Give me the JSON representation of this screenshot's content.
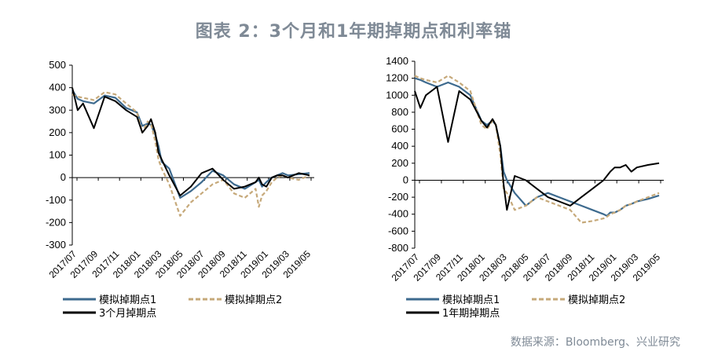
{
  "title": "图表 2：3个月和1年期掉期点和利率锚",
  "source": "数据来源：Bloomberg、兴业研究",
  "colors": {
    "series1": "#3d6a8e",
    "series2": "#c6a97a",
    "series3": "#000000"
  },
  "chart_data": [
    {
      "type": "line",
      "ylim": [
        -300,
        500
      ],
      "yticks": [
        "500",
        "400",
        "300",
        "200",
        "100",
        "0",
        "-100",
        "-200",
        "-300"
      ],
      "xticks": [
        "2017/07",
        "2017/09",
        "2017/11",
        "2018/01",
        "2018/03",
        "2018/05",
        "2018/07",
        "2018/09",
        "2018/11",
        "2019/01",
        "2019/03",
        "2019/05"
      ],
      "grid": false,
      "legend": "bottom-left",
      "series": [
        {
          "name": "模拟掉期点1",
          "style": "solid",
          "x": [
            0,
            0.5,
            1,
            2,
            3,
            4,
            5,
            6,
            6.5,
            7,
            7.3,
            7.7,
            8,
            8.3,
            9,
            10,
            11,
            12,
            13,
            14,
            15,
            16,
            17,
            17.3,
            17.6,
            18,
            18.5,
            19,
            19.5,
            20,
            21,
            22
          ],
          "values": [
            390,
            350,
            340,
            330,
            365,
            355,
            310,
            290,
            230,
            240,
            235,
            190,
            140,
            70,
            40,
            -90,
            -60,
            -20,
            30,
            10,
            -30,
            -50,
            -20,
            -10,
            -40,
            -20,
            0,
            10,
            20,
            10,
            15,
            20
          ]
        },
        {
          "name": "模拟掉期点2",
          "style": "dashed",
          "x": [
            0,
            0.5,
            1,
            2,
            3,
            4,
            5,
            6,
            6.5,
            7,
            7.3,
            7.7,
            8,
            8.3,
            9,
            10,
            11,
            12,
            13,
            14,
            15,
            16,
            17,
            17.3,
            17.6,
            18,
            18.5,
            19,
            19.5,
            20,
            21,
            22
          ],
          "values": [
            370,
            360,
            355,
            345,
            380,
            370,
            330,
            290,
            200,
            250,
            240,
            160,
            80,
            40,
            -30,
            -170,
            -110,
            -70,
            -30,
            -10,
            -70,
            -90,
            -50,
            -130,
            -80,
            -60,
            -20,
            0,
            10,
            0,
            -10,
            10
          ]
        },
        {
          "name": "3个月掉期点",
          "style": "solid",
          "x": [
            0,
            0.5,
            1,
            2,
            3,
            4,
            5,
            6,
            6.5,
            7,
            7.3,
            7.7,
            8,
            8.3,
            9,
            10,
            11,
            12,
            13,
            14,
            15,
            16,
            17,
            17.3,
            17.6,
            18,
            18.5,
            19,
            19.5,
            20,
            21,
            22
          ],
          "values": [
            400,
            300,
            330,
            220,
            360,
            340,
            300,
            270,
            200,
            230,
            260,
            200,
            110,
            80,
            10,
            -80,
            -40,
            20,
            40,
            -10,
            -50,
            -40,
            -20,
            0,
            -30,
            -40,
            0,
            10,
            10,
            0,
            20,
            10
          ]
        }
      ]
    },
    {
      "type": "line",
      "ylim": [
        -800,
        1400
      ],
      "yticks": [
        "1400",
        "1200",
        "1000",
        "800",
        "600",
        "400",
        "200",
        "0",
        "-200",
        "-400",
        "-600",
        "-800"
      ],
      "xticks": [
        "2017/07",
        "2017/09",
        "2017/11",
        "2018/01",
        "2018/03",
        "2018/05",
        "2018/07",
        "2018/09",
        "2018/11",
        "2019/01",
        "2019/03",
        "2019/05"
      ],
      "grid": false,
      "legend": "bottom-left",
      "series": [
        {
          "name": "模拟掉期点1",
          "style": "solid",
          "x": [
            0,
            0.5,
            1,
            2,
            3,
            4,
            5,
            6,
            6.5,
            7,
            7.3,
            7.7,
            8,
            8.3,
            9,
            10,
            11,
            12,
            13,
            14,
            15,
            16,
            17,
            17.3,
            17.6,
            18,
            18.5,
            19,
            19.5,
            20,
            21,
            22
          ],
          "values": [
            1200,
            1180,
            1150,
            1100,
            1150,
            1100,
            1000,
            700,
            650,
            700,
            650,
            400,
            100,
            0,
            -150,
            -300,
            -200,
            -150,
            -200,
            -250,
            -300,
            -350,
            -400,
            -420,
            -380,
            -380,
            -350,
            -300,
            -280,
            -250,
            -220,
            -180
          ]
        },
        {
          "name": "模拟掉期点2",
          "style": "dashed",
          "x": [
            0,
            0.5,
            1,
            2,
            3,
            4,
            5,
            6,
            6.5,
            7,
            7.3,
            7.7,
            8,
            8.3,
            9,
            10,
            11,
            12,
            13,
            14,
            15,
            16,
            17,
            17.3,
            17.6,
            18,
            18.5,
            19,
            19.5,
            20,
            21,
            22
          ],
          "values": [
            1230,
            1200,
            1180,
            1150,
            1230,
            1150,
            1050,
            650,
            600,
            700,
            650,
            300,
            -100,
            -150,
            -350,
            -300,
            -200,
            -250,
            -300,
            -350,
            -500,
            -480,
            -450,
            -430,
            -400,
            -380,
            -350,
            -300,
            -280,
            -250,
            -200,
            -150
          ]
        },
        {
          "name": "1年期掉期点",
          "style": "solid",
          "x": [
            0,
            0.5,
            1,
            2,
            3,
            4,
            5,
            6,
            6.5,
            7,
            7.3,
            7.7,
            8,
            8.3,
            9,
            10,
            11,
            12,
            13,
            14,
            15,
            16,
            17,
            17.3,
            17.6,
            18,
            18.5,
            19,
            19.5,
            20,
            21,
            22
          ],
          "values": [
            1050,
            850,
            1000,
            1100,
            450,
            1050,
            950,
            700,
            620,
            720,
            650,
            400,
            -50,
            -350,
            50,
            0,
            -100,
            -200,
            -250,
            -300,
            -200,
            -100,
            0,
            50,
            100,
            150,
            150,
            180,
            100,
            150,
            180,
            200
          ]
        }
      ]
    }
  ],
  "legend": [
    {
      "label": "模拟掉期点1"
    },
    {
      "label": "模拟掉期点2"
    }
  ],
  "legend3_left": "3个月掉期点",
  "legend3_right": "1年期掉期点"
}
